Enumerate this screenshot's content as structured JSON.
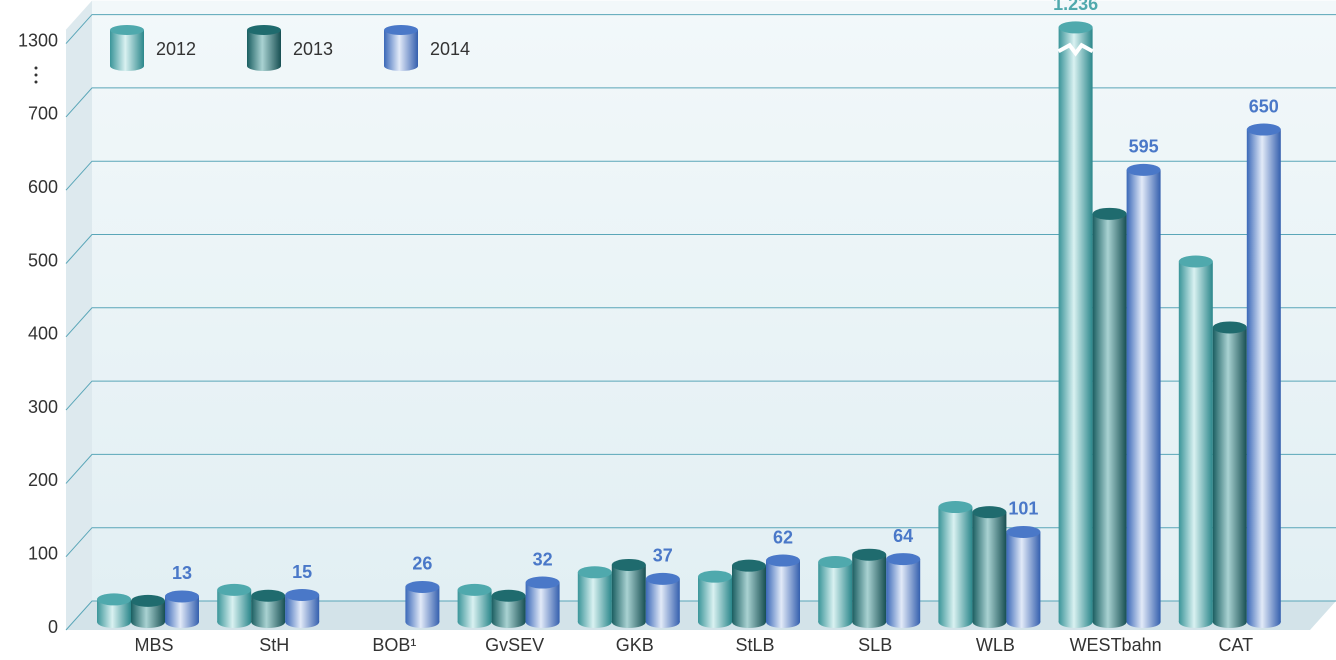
{
  "chart_data": {
    "type": "bar3d",
    "categories": [
      "MBS",
      "StH",
      "BOB¹",
      "GvSEV",
      "GKB",
      "StLB",
      "SLB",
      "WLB",
      "WESTbahn",
      "CAT"
    ],
    "series": [
      {
        "name": "2012",
        "color": "#4fa9ad",
        "values": [
          9,
          22,
          null,
          22,
          46,
          40,
          60,
          135,
          1236,
          470
        ],
        "value_labels": [
          null,
          null,
          null,
          null,
          null,
          null,
          null,
          null,
          "1.236",
          null
        ]
      },
      {
        "name": "2013",
        "color": "#1f6b6e",
        "values": [
          7,
          14,
          null,
          14,
          56,
          55,
          70,
          128,
          535,
          380
        ]
      },
      {
        "name": "2014",
        "color": "#4a78c8",
        "values": [
          13,
          15,
          26,
          32,
          37,
          62,
          64,
          101,
          595,
          650
        ],
        "data_labels": true
      }
    ],
    "ylim": [
      0,
      1300
    ],
    "yticks": [
      0,
      100,
      200,
      300,
      400,
      500,
      600,
      700,
      1300
    ],
    "axis_break": true,
    "grid": true,
    "legend": "top-left"
  }
}
